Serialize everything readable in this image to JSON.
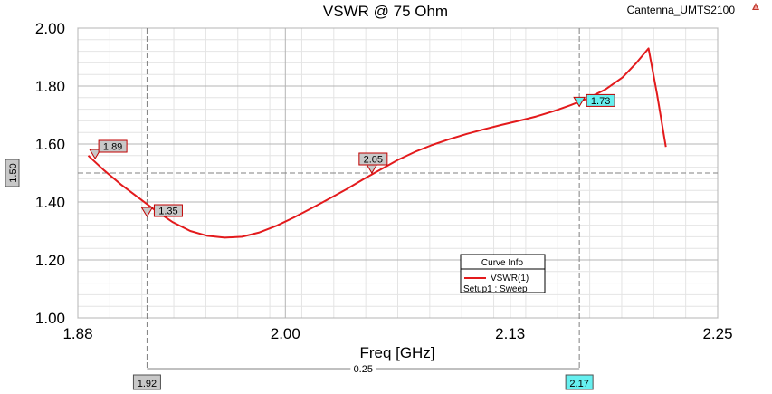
{
  "chart_data": {
    "type": "line",
    "title": "VSWR @ 75 Ohm",
    "design_name": "Cantenna_UMTS2100",
    "xlabel": "Freq [GHz]",
    "ylabel": "",
    "xlim": [
      1.88,
      2.25
    ],
    "ylim": [
      1.0,
      2.0
    ],
    "x_ticks": [
      {
        "value": 1.88,
        "label": "1.88"
      },
      {
        "value": 2.0,
        "label": "2.00"
      },
      {
        "value": 2.13,
        "label": "2.13"
      },
      {
        "value": 2.25,
        "label": "2.25"
      }
    ],
    "y_ticks": [
      {
        "value": 1.0,
        "label": "1.00"
      },
      {
        "value": 1.2,
        "label": "1.20"
      },
      {
        "value": 1.4,
        "label": "1.40"
      },
      {
        "value": 1.6,
        "label": "1.60"
      },
      {
        "value": 1.8,
        "label": "1.80"
      },
      {
        "value": 2.0,
        "label": "2.00"
      }
    ],
    "grid": true,
    "series": [
      {
        "name": "VSWR(1)",
        "setup": "Setup1 : Sweep",
        "color": "#e31a1c",
        "x": [
          1.886,
          1.895,
          1.905,
          1.915,
          1.925,
          1.935,
          1.945,
          1.955,
          1.965,
          1.975,
          1.985,
          1.995,
          2.005,
          2.015,
          2.025,
          2.035,
          2.045,
          2.055,
          2.065,
          2.075,
          2.085,
          2.095,
          2.105,
          2.115,
          2.125,
          2.135,
          2.145,
          2.155,
          2.165,
          2.175,
          2.185,
          2.195,
          2.203,
          2.21,
          2.215,
          2.22
        ],
        "y": [
          1.56,
          1.51,
          1.46,
          1.415,
          1.37,
          1.33,
          1.3,
          1.283,
          1.277,
          1.28,
          1.295,
          1.318,
          1.347,
          1.378,
          1.41,
          1.443,
          1.478,
          1.512,
          1.545,
          1.573,
          1.597,
          1.617,
          1.635,
          1.651,
          1.666,
          1.68,
          1.695,
          1.713,
          1.734,
          1.758,
          1.788,
          1.83,
          1.88,
          1.93,
          1.77,
          1.59
        ]
      }
    ],
    "markers": [
      {
        "label": "1.89",
        "x": 1.89,
        "y": 1.55,
        "color": "#c8c8c8"
      },
      {
        "label": "1.35",
        "x": 1.92,
        "y": 1.35,
        "color": "#c8c8c8"
      },
      {
        "label": "2.05",
        "x": 2.05,
        "y": 1.5,
        "color": "#c8c8c8"
      },
      {
        "label": "1.73",
        "x": 2.17,
        "y": 1.73,
        "color": "#66f0f0"
      }
    ],
    "horizontal_marker": {
      "value": 1.5,
      "label": "1.50"
    },
    "vertical_markers": [
      {
        "value": 1.92,
        "label": "1.92",
        "color": "#c8c8c8"
      },
      {
        "value": 2.17,
        "label": "2.17",
        "color": "#66f0f0"
      }
    ],
    "delta": {
      "label": "0.25"
    },
    "legend": {
      "title": "Curve Info",
      "position": "bottom-right",
      "entries": [
        "VSWR(1)"
      ],
      "sub": "Setup1 : Sweep"
    }
  }
}
